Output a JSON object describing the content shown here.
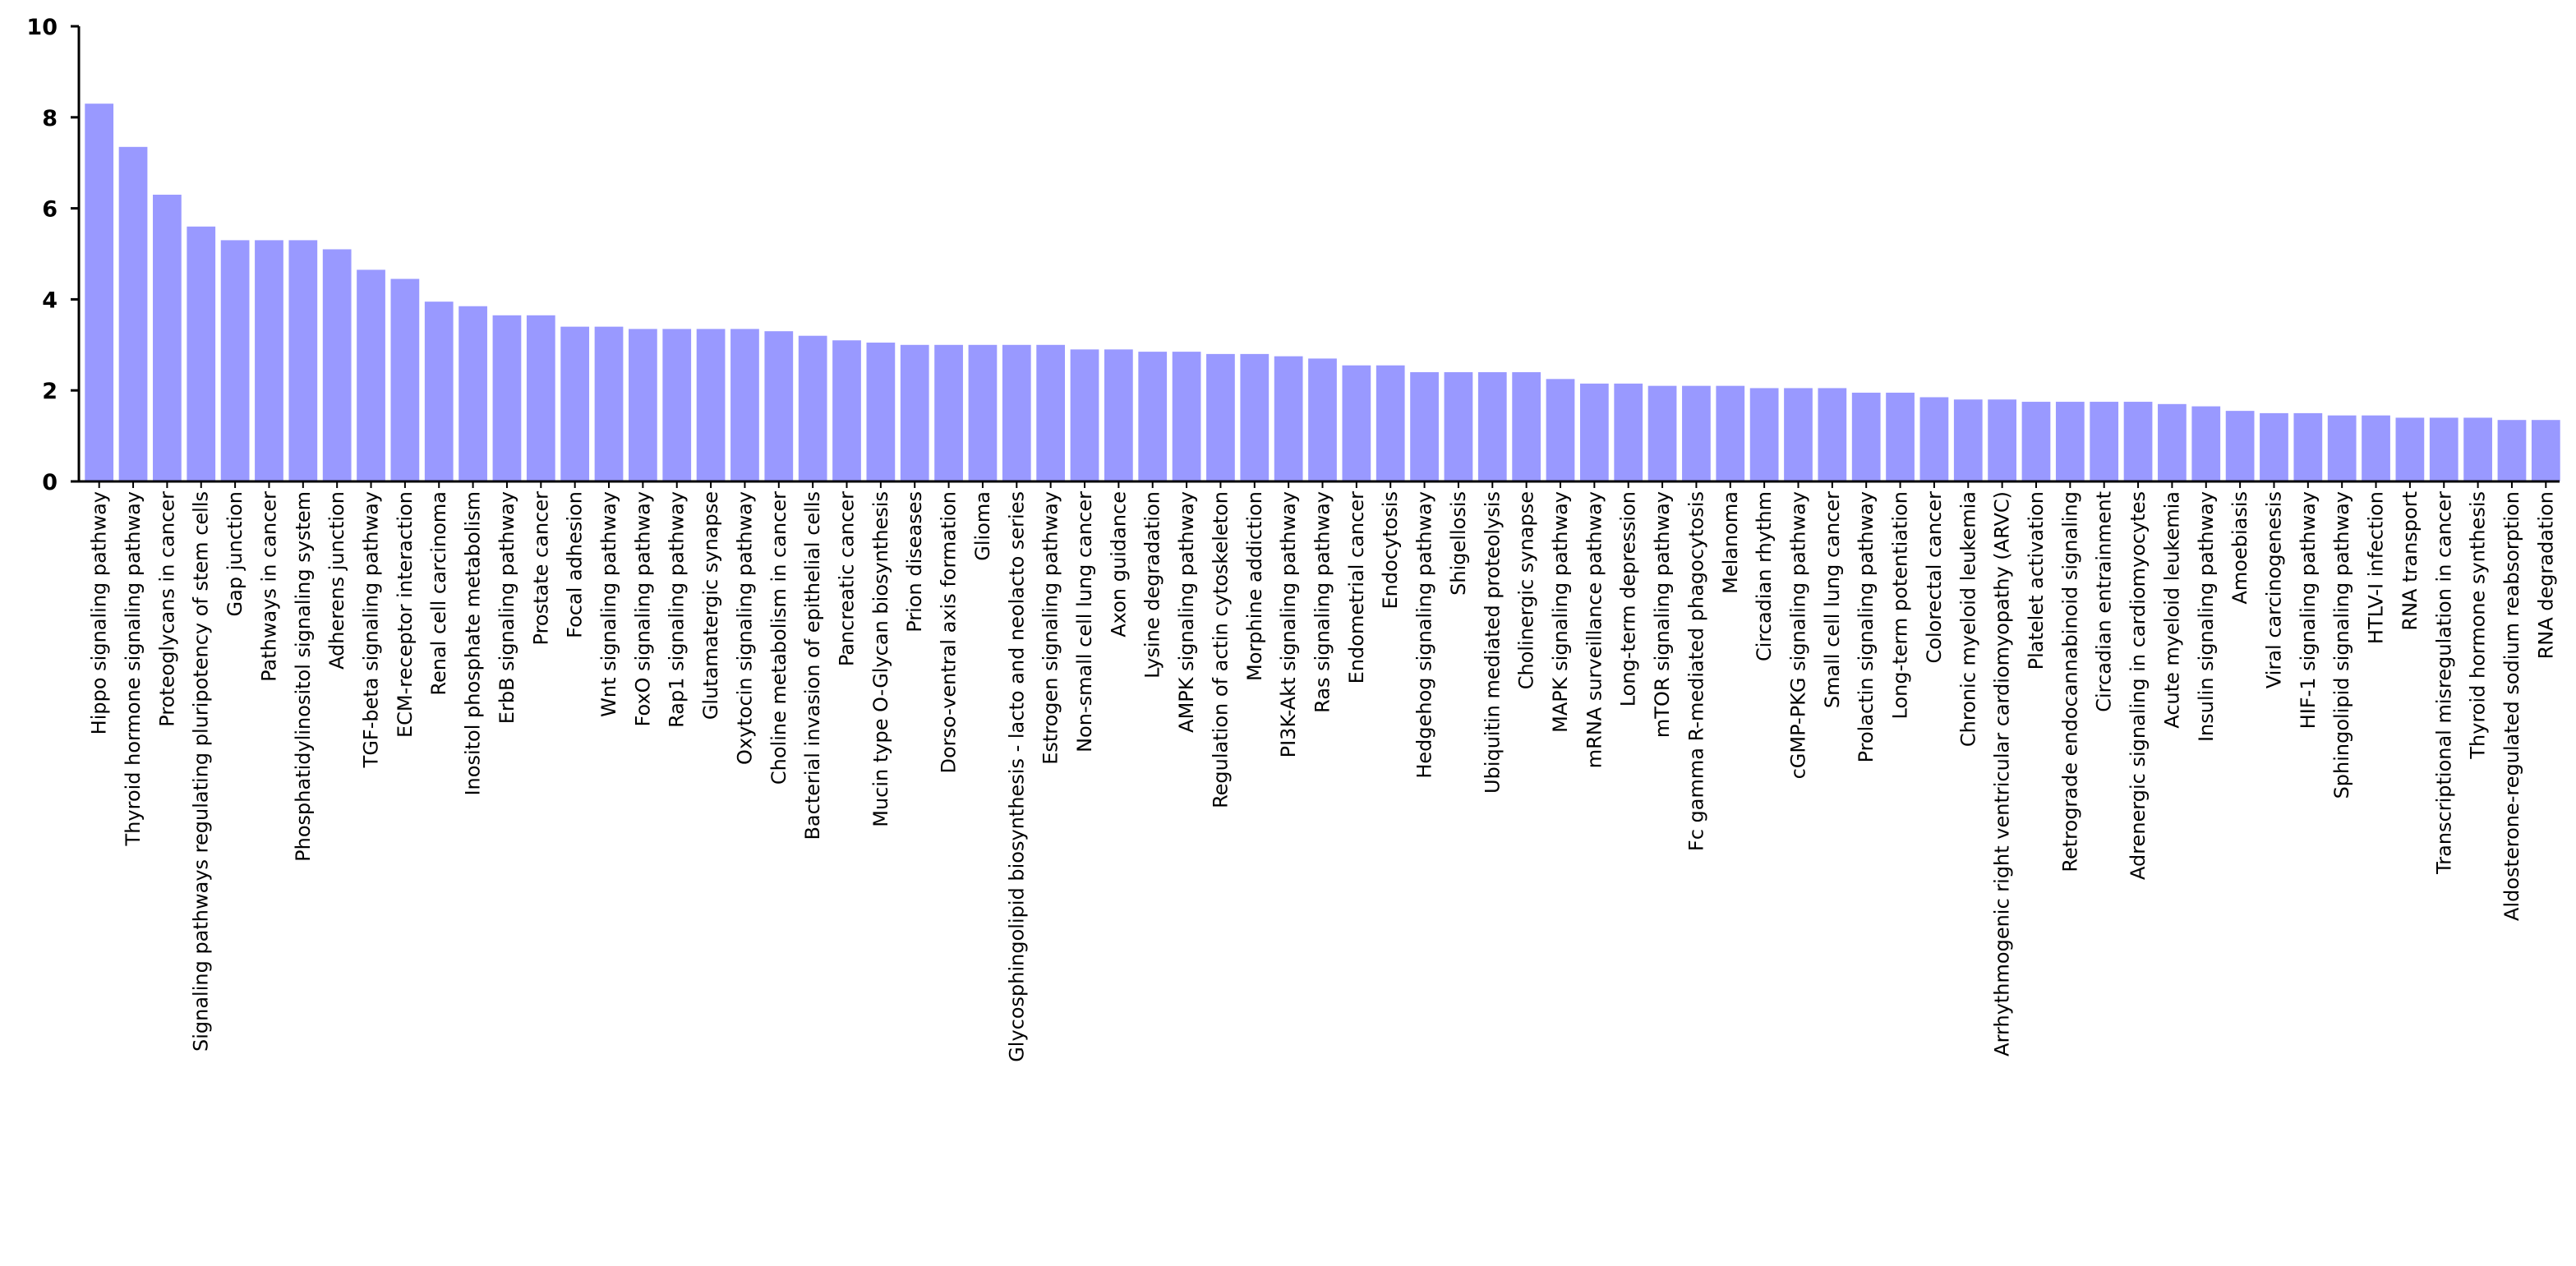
{
  "chart_data": {
    "type": "bar",
    "title": "",
    "xlabel": "",
    "ylabel": "",
    "ylim": [
      0,
      10
    ],
    "yticks": [
      0,
      2,
      4,
      6,
      8,
      10
    ],
    "grid": false,
    "legend": "none",
    "bar_color": "#9999ff",
    "categories": [
      "Hippo signaling pathway",
      "Thyroid hormone signaling pathway",
      "Proteoglycans in cancer",
      "Signaling pathways regulating pluripotency of stem cells",
      "Gap junction",
      "Pathways in cancer",
      "Phosphatidylinositol signaling system",
      "Adherens junction",
      "TGF-beta signaling pathway",
      "ECM-receptor interaction",
      "Renal cell carcinoma",
      "Inositol phosphate metabolism",
      "ErbB signaling pathway",
      "Prostate cancer",
      "Focal adhesion",
      "Wnt signaling pathway",
      "FoxO signaling pathway",
      "Rap1 signaling pathway",
      "Glutamatergic synapse",
      "Oxytocin signaling pathway",
      "Choline metabolism in cancer",
      "Bacterial invasion of epithelial cells",
      "Pancreatic cancer",
      "Mucin type O-Glycan biosynthesis",
      "Prion diseases",
      "Dorso-ventral axis formation",
      "Glioma",
      "Glycosphingolipid biosynthesis - lacto and neolacto series",
      "Estrogen signaling pathway",
      "Non-small cell lung cancer",
      "Axon guidance",
      "Lysine degradation",
      "AMPK signaling pathway",
      "Regulation of actin cytoskeleton",
      "Morphine addiction",
      "PI3K-Akt signaling pathway",
      "Ras signaling pathway",
      "Endometrial cancer",
      "Endocytosis",
      "Hedgehog signaling pathway",
      "Shigellosis",
      "Ubiquitin mediated proteolysis",
      "Cholinergic synapse",
      "MAPK signaling pathway",
      "mRNA surveillance pathway",
      "Long-term depression",
      "mTOR signaling pathway",
      "Fc gamma R-mediated phagocytosis",
      "Melanoma",
      "Circadian rhythm",
      "cGMP-PKG signaling pathway",
      "Small cell lung cancer",
      "Prolactin signaling pathway",
      "Long-term potentiation",
      "Colorectal cancer",
      "Chronic myeloid leukemia",
      "Arrhythmogenic right ventricular cardiomyopathy (ARVC)",
      "Platelet activation",
      "Retrograde endocannabinoid signaling",
      "Circadian entrainment",
      "Adrenergic signaling in cardiomyocytes",
      "Acute myeloid leukemia",
      "Insulin signaling pathway",
      "Amoebiasis",
      "Viral carcinogenesis",
      "HIF-1 signaling pathway",
      "Sphingolipid signaling pathway",
      "HTLV-I infection",
      "RNA transport",
      "Transcriptional misregulation in cancer",
      "Thyroid hormone synthesis",
      "Aldosterone-regulated sodium reabsorption",
      "RNA degradation"
    ],
    "values": [
      8.3,
      7.35,
      6.3,
      5.6,
      5.3,
      5.3,
      5.3,
      5.1,
      4.65,
      4.45,
      3.95,
      3.85,
      3.65,
      3.65,
      3.4,
      3.4,
      3.35,
      3.35,
      3.35,
      3.35,
      3.3,
      3.2,
      3.1,
      3.05,
      3.0,
      3.0,
      3.0,
      3.0,
      3.0,
      2.9,
      2.9,
      2.85,
      2.85,
      2.8,
      2.8,
      2.75,
      2.7,
      2.55,
      2.55,
      2.4,
      2.4,
      2.4,
      2.4,
      2.25,
      2.15,
      2.15,
      2.1,
      2.1,
      2.1,
      2.05,
      2.05,
      2.05,
      1.95,
      1.95,
      1.85,
      1.8,
      1.8,
      1.75,
      1.75,
      1.75,
      1.75,
      1.7,
      1.65,
      1.55,
      1.5,
      1.5,
      1.45,
      1.45,
      1.4,
      1.4,
      1.4,
      1.35,
      1.35
    ]
  }
}
